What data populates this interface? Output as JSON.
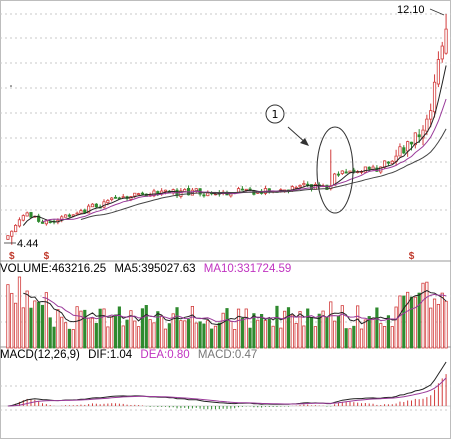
{
  "colors": {
    "background": "#ffffff",
    "grid": "#c8c8c8",
    "up": "#d23c3c",
    "down": "#2f8a2f",
    "ma_short": "#222222",
    "ma_mid": "#9a3a9a",
    "ma_long": "#444444",
    "text": "#000000",
    "accent": "#c033c0",
    "muted": "#777777",
    "signal": "#c0392b"
  },
  "price_panel": {
    "high_label": "12.10",
    "low_label": "4.44",
    "annotation_label": "①",
    "signal_marker": "$"
  },
  "volume_panel": {
    "label": "VOLUME:463216.25",
    "ma5": "MA5:395027.63",
    "ma10": "MA10:331724.59"
  },
  "macd_panel": {
    "label": "MACD(12,26,9)",
    "dif": "DIF:1.04",
    "dea": "DEA:0.80",
    "macd": "MACD:0.47"
  },
  "chart_data": {
    "type": "candlestick",
    "ylim": [
      4.0,
      12.5
    ],
    "price_anchors": [
      [
        0,
        4.7
      ],
      [
        5,
        5.5
      ],
      [
        9,
        5.2
      ],
      [
        14,
        5.3
      ],
      [
        22,
        5.7
      ],
      [
        30,
        6.0
      ],
      [
        40,
        6.15
      ],
      [
        50,
        6.2
      ],
      [
        60,
        6.2
      ],
      [
        70,
        6.25
      ],
      [
        76,
        6.4
      ],
      [
        83,
        6.3
      ],
      [
        85,
        6.7
      ],
      [
        90,
        6.9
      ],
      [
        96,
        7.0
      ],
      [
        100,
        7.3
      ],
      [
        104,
        7.6
      ],
      [
        107,
        8.2
      ],
      [
        110,
        9.0
      ],
      [
        112,
        10.5
      ],
      [
        114,
        12.0
      ]
    ],
    "candle_count": 115,
    "high": 12.1,
    "low": 4.44,
    "volume_latest": 463216.25,
    "volume_ma5": 395027.63,
    "volume_ma10": 331724.59,
    "macd": {
      "dif": 1.04,
      "dea": 0.8,
      "macd": 0.47
    },
    "signal_marker_indices": [
      1,
      10,
      105
    ]
  }
}
